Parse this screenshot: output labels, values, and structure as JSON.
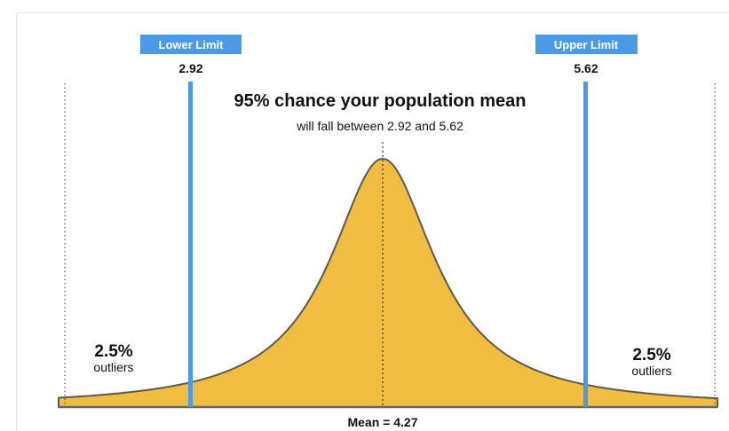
{
  "diagram": {
    "headline": "95% chance your population mean",
    "subline": "will fall between 2.92 and 5.62",
    "lower": {
      "label": "Lower Limit",
      "value": "2.92"
    },
    "upper": {
      "label": "Upper Limit",
      "value": "5.62"
    },
    "mean_label": "Mean = 4.27",
    "left_tail": {
      "percent": "2.5%",
      "word": "outliers"
    },
    "right_tail": {
      "percent": "2.5%",
      "word": "outliers"
    }
  },
  "colors": {
    "curve_fill": "#F1BD41",
    "curve_stroke": "#595959",
    "limit_line": "#4A9AE8",
    "badge": "#4A9AE8",
    "badge_text": "#ffffff",
    "text": "#111111",
    "guide": "#555555"
  }
}
